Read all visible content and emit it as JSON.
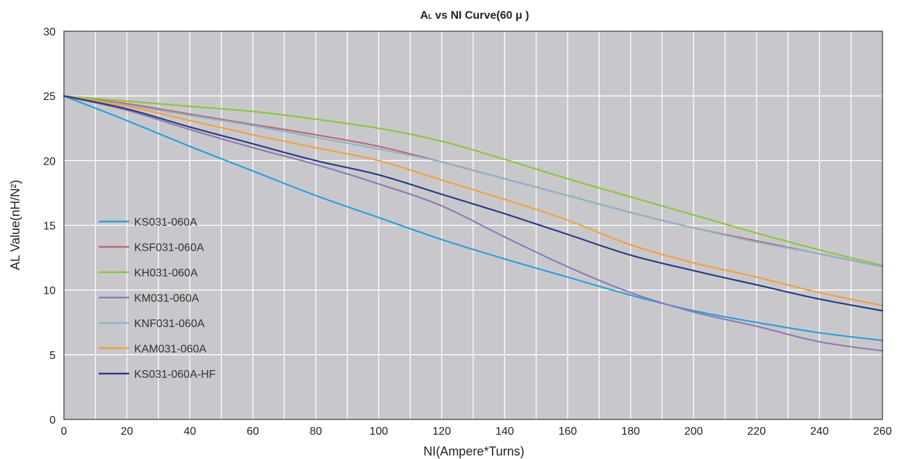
{
  "chart_data": {
    "type": "line",
    "title": "vs NI Curve(60 μ )",
    "title_prefix_main": "A",
    "title_prefix_sub": "L",
    "xlabel": "NI(Ampere*Turns)",
    "ylabel": "AL Value(nH/N²)",
    "xlim": [
      0,
      260
    ],
    "ylim": [
      0,
      30
    ],
    "xticks": [
      0,
      20,
      40,
      60,
      80,
      100,
      120,
      140,
      160,
      180,
      200,
      220,
      240,
      260
    ],
    "yticks": [
      0,
      5,
      10,
      15,
      20,
      25,
      30
    ],
    "grid": true,
    "legend_position": "left",
    "background": "#c8c8cc",
    "series": [
      {
        "name": "KS031-060A",
        "color": "#2a9fd8",
        "x": [
          0,
          20,
          40,
          60,
          80,
          100,
          120,
          140,
          160,
          180,
          200,
          220,
          240,
          260
        ],
        "y": [
          25,
          23.1,
          21.1,
          19.2,
          17.3,
          15.6,
          13.9,
          12.4,
          11.0,
          9.6,
          8.4,
          7.5,
          6.7,
          6.1
        ]
      },
      {
        "name": "KSF031-060A",
        "color": "#b86a78",
        "x": [
          0,
          20,
          40,
          60,
          80,
          100,
          120,
          140,
          160,
          180,
          200,
          220,
          240,
          260
        ],
        "y": [
          25,
          24.4,
          23.6,
          22.8,
          22.0,
          21.1,
          19.9,
          18.6,
          17.3,
          16.0,
          14.8,
          13.8,
          12.8,
          11.8
        ]
      },
      {
        "name": "KH031-060A",
        "color": "#8fc43a",
        "x": [
          0,
          20,
          40,
          60,
          80,
          100,
          120,
          140,
          160,
          180,
          200,
          220,
          240,
          260
        ],
        "y": [
          25,
          24.6,
          24.2,
          23.8,
          23.2,
          22.5,
          21.5,
          20.1,
          18.6,
          17.2,
          15.8,
          14.4,
          13.1,
          11.9
        ]
      },
      {
        "name": "KM031-060A",
        "color": "#8c7ab5",
        "x": [
          0,
          20,
          40,
          60,
          80,
          100,
          120,
          140,
          160,
          180,
          200,
          220,
          240,
          260
        ],
        "y": [
          25,
          23.9,
          22.4,
          21.0,
          19.7,
          18.2,
          16.5,
          14.1,
          11.8,
          9.8,
          8.3,
          7.2,
          6.0,
          5.3
        ]
      },
      {
        "name": "KNF031-060A",
        "color": "#8fb3c4",
        "x": [
          0,
          20,
          40,
          60,
          80,
          100,
          120,
          140,
          160,
          180,
          200,
          220,
          240,
          260
        ],
        "y": [
          25,
          24.3,
          23.5,
          22.7,
          21.8,
          20.9,
          19.9,
          18.6,
          17.3,
          16.0,
          14.8,
          13.7,
          12.8,
          11.8
        ]
      },
      {
        "name": "KAM031-060A",
        "color": "#f0a040",
        "x": [
          0,
          20,
          40,
          60,
          80,
          100,
          120,
          140,
          160,
          180,
          200,
          220,
          240,
          260
        ],
        "y": [
          25,
          24.2,
          23.1,
          22.0,
          21.0,
          20.0,
          18.5,
          17.0,
          15.4,
          13.5,
          12.1,
          11.0,
          9.8,
          8.8
        ]
      },
      {
        "name": "KS031-060A-HF",
        "color": "#283a80",
        "x": [
          0,
          20,
          40,
          60,
          80,
          100,
          120,
          140,
          160,
          180,
          200,
          220,
          240,
          260
        ],
        "y": [
          25,
          24.0,
          22.6,
          21.3,
          20.0,
          18.9,
          17.4,
          15.9,
          14.3,
          12.7,
          11.5,
          10.4,
          9.3,
          8.4
        ]
      }
    ]
  }
}
